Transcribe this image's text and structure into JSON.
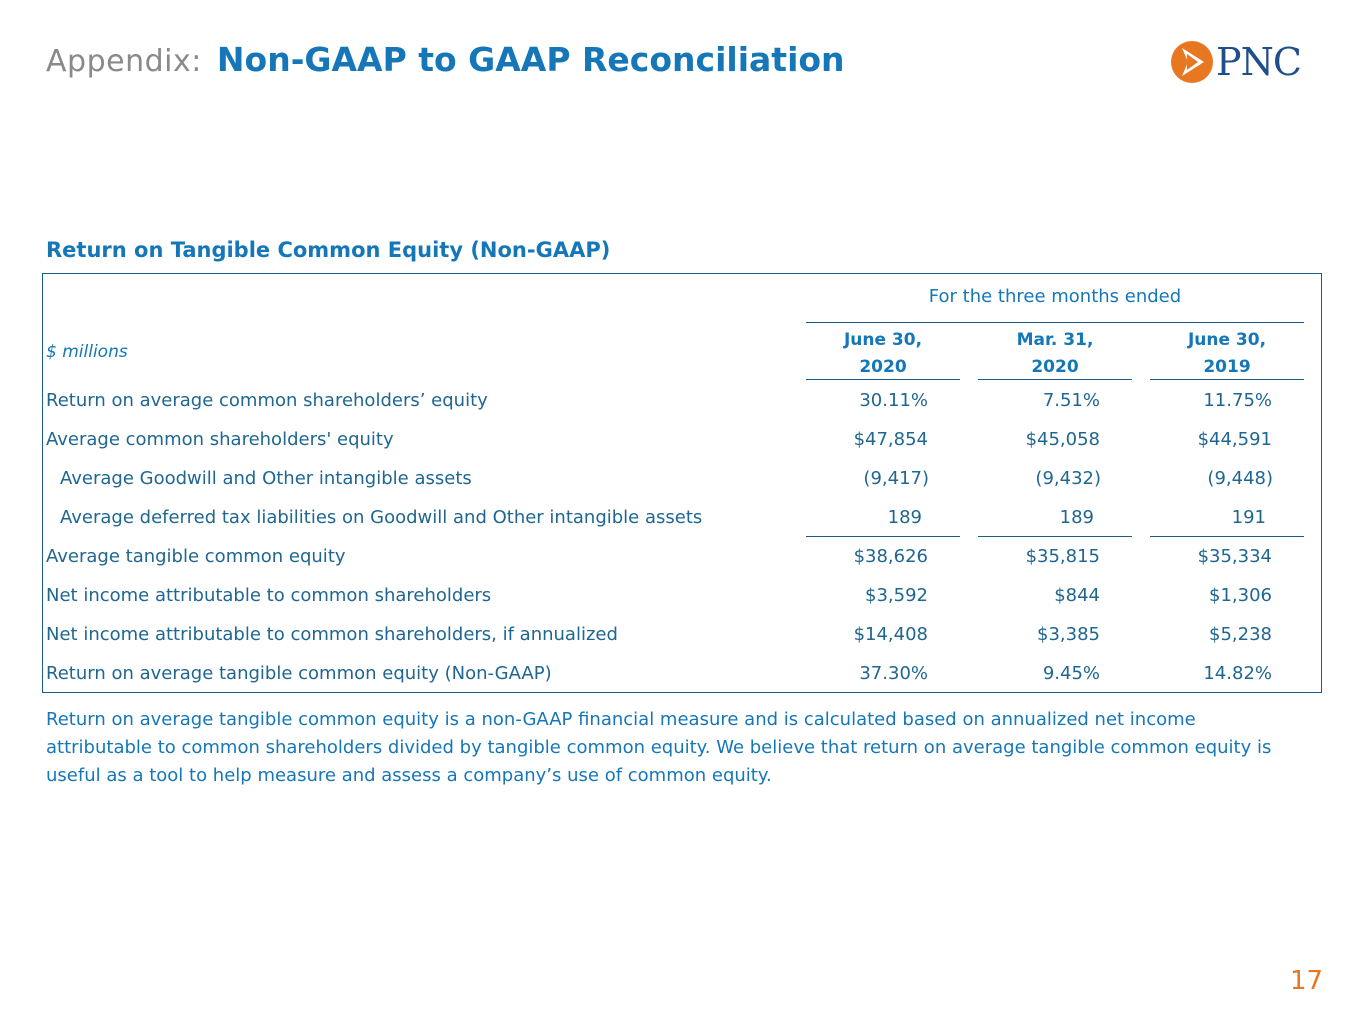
{
  "header": {
    "prefix": "Appendix:",
    "title": "Non-GAAP to GAAP Reconciliation"
  },
  "logo": {
    "text": "PNC",
    "icon": "pnc-logo-icon",
    "color": "#e87722"
  },
  "section_title": "Return on Tangible Common Equity (Non-GAAP)",
  "table": {
    "period_header": "For the three months ended",
    "unit_label": "$ millions",
    "columns": [
      {
        "line1": "June 30,",
        "line2": "2020"
      },
      {
        "line1": "Mar. 31,",
        "line2": "2020"
      },
      {
        "line1": "June 30,",
        "line2": "2019"
      }
    ],
    "rows": [
      {
        "label": "Return on average common shareholders’ equity",
        "indent": false,
        "values": [
          "30.11%",
          "7.51%",
          "11.75%"
        ]
      },
      {
        "label": "Average common shareholders' equity",
        "indent": false,
        "values": [
          "$47,854",
          "$45,058",
          "$44,591"
        ]
      },
      {
        "label": "Average Goodwill and Other intangible assets",
        "indent": true,
        "values": [
          "(9,417)",
          "(9,432)",
          "(9,448)"
        ]
      },
      {
        "label": "Average deferred tax liabilities on Goodwill and Other intangible assets",
        "indent": true,
        "values": [
          "189",
          "189",
          "191"
        ]
      },
      {
        "label": "Average tangible common equity",
        "indent": false,
        "values": [
          "$38,626",
          "$35,815",
          "$35,334"
        ]
      },
      {
        "label": "Net income attributable to common shareholders",
        "indent": false,
        "values": [
          "$3,592",
          "$844",
          "$1,306"
        ]
      },
      {
        "label": "Net income attributable to common shareholders, if annualized",
        "indent": false,
        "values": [
          "$14,408",
          "$3,385",
          "$5,238"
        ]
      },
      {
        "label": "Return on average tangible common equity (Non-GAAP)",
        "indent": false,
        "values": [
          "37.30%",
          "9.45%",
          "14.82%"
        ]
      }
    ]
  },
  "footnote": "Return on average tangible common equity is a non-GAAP financial measure and is calculated based on annualized net income attributable to common shareholders divided by tangible common equity.  We believe that return on average tangible common equity is useful as a tool to help measure and assess a company’s use of common equity.",
  "page_number": "17"
}
